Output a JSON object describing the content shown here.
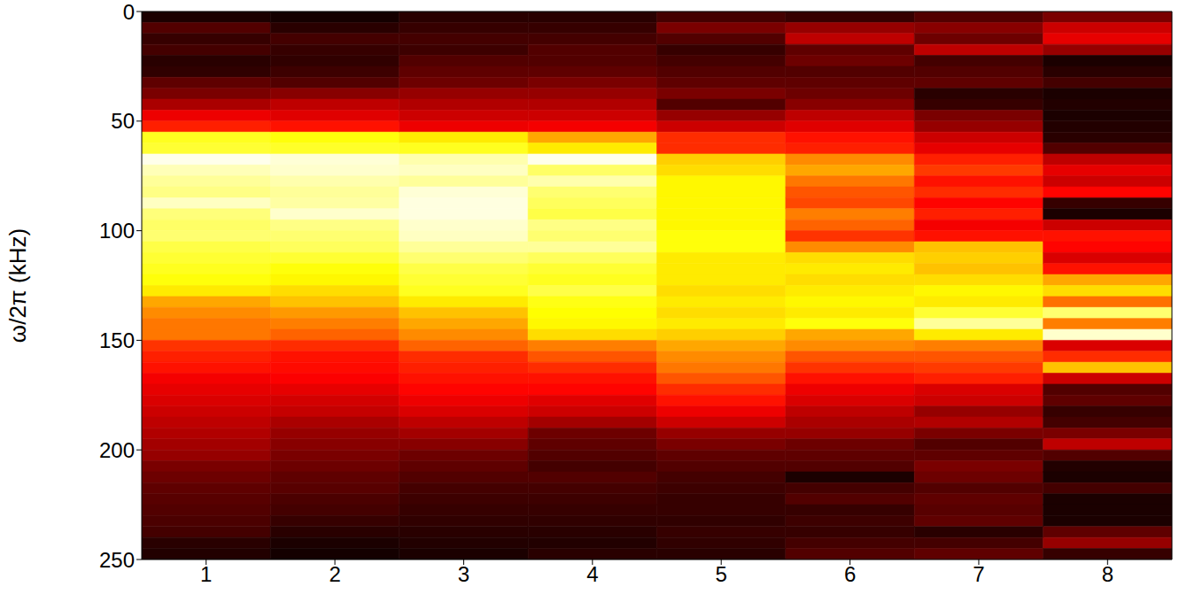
{
  "chart_data": {
    "type": "heatmap",
    "ylabel": "ω/2π (kHz)",
    "x": [
      1,
      2,
      3,
      4,
      5,
      6,
      7,
      8
    ],
    "xlim": [
      0.5,
      8.5
    ],
    "xticks": [
      1,
      2,
      3,
      4,
      5,
      6,
      7,
      8
    ],
    "ylim": [
      0,
      250
    ],
    "yticks": [
      0,
      50,
      100,
      150,
      200,
      250
    ],
    "y_bins": [
      0,
      5,
      10,
      15,
      20,
      25,
      30,
      35,
      40,
      45,
      50,
      55,
      60,
      65,
      70,
      75,
      80,
      85,
      90,
      95,
      100,
      105,
      110,
      115,
      120,
      125,
      130,
      135,
      140,
      145,
      150,
      155,
      160,
      165,
      170,
      175,
      180,
      185,
      190,
      195,
      200,
      205,
      210,
      215,
      220,
      225,
      230,
      235,
      240,
      245,
      250
    ],
    "color_range": [
      0,
      1
    ],
    "cells": [
      [
        0.04,
        0.12,
        0.08,
        0.1,
        0.06,
        0.07,
        0.14,
        0.18,
        0.25,
        0.35,
        0.42,
        0.78,
        0.8,
        0.98,
        0.93,
        0.9,
        0.88,
        0.94,
        0.87,
        0.85,
        0.86,
        0.82,
        0.8,
        0.78,
        0.76,
        0.72,
        0.62,
        0.58,
        0.55,
        0.55,
        0.45,
        0.42,
        0.4,
        0.36,
        0.34,
        0.32,
        0.3,
        0.28,
        0.26,
        0.24,
        0.22,
        0.18,
        0.16,
        0.14,
        0.13,
        0.12,
        0.11,
        0.1,
        0.06,
        0.05
      ],
      [
        0.03,
        0.06,
        0.1,
        0.08,
        0.07,
        0.09,
        0.12,
        0.2,
        0.28,
        0.33,
        0.4,
        0.76,
        0.79,
        0.96,
        0.95,
        0.92,
        0.9,
        0.91,
        0.95,
        0.88,
        0.86,
        0.84,
        0.8,
        0.76,
        0.74,
        0.7,
        0.66,
        0.6,
        0.56,
        0.52,
        0.44,
        0.4,
        0.39,
        0.37,
        0.34,
        0.31,
        0.29,
        0.25,
        0.22,
        0.2,
        0.18,
        0.16,
        0.14,
        0.13,
        0.11,
        0.1,
        0.08,
        0.06,
        0.04,
        0.03
      ],
      [
        0.06,
        0.08,
        0.1,
        0.09,
        0.12,
        0.14,
        0.16,
        0.22,
        0.26,
        0.3,
        0.35,
        0.72,
        0.78,
        0.92,
        0.94,
        0.9,
        0.96,
        0.97,
        0.97,
        0.95,
        0.94,
        0.9,
        0.86,
        0.82,
        0.8,
        0.78,
        0.72,
        0.66,
        0.62,
        0.58,
        0.52,
        0.44,
        0.42,
        0.4,
        0.38,
        0.35,
        0.32,
        0.28,
        0.24,
        0.2,
        0.16,
        0.14,
        0.12,
        0.1,
        0.09,
        0.08,
        0.07,
        0.06,
        0.05,
        0.04
      ],
      [
        0.06,
        0.08,
        0.1,
        0.12,
        0.12,
        0.14,
        0.18,
        0.22,
        0.26,
        0.3,
        0.36,
        0.62,
        0.72,
        0.98,
        0.85,
        0.92,
        0.86,
        0.84,
        0.82,
        0.88,
        0.86,
        0.9,
        0.84,
        0.8,
        0.78,
        0.82,
        0.77,
        0.75,
        0.74,
        0.7,
        0.56,
        0.5,
        0.44,
        0.4,
        0.38,
        0.33,
        0.3,
        0.24,
        0.16,
        0.14,
        0.12,
        0.1,
        0.12,
        0.1,
        0.09,
        0.08,
        0.07,
        0.06,
        0.05,
        0.06
      ],
      [
        0.1,
        0.18,
        0.12,
        0.08,
        0.1,
        0.12,
        0.14,
        0.18,
        0.12,
        0.22,
        0.3,
        0.44,
        0.44,
        0.68,
        0.7,
        0.74,
        0.74,
        0.74,
        0.74,
        0.74,
        0.76,
        0.76,
        0.72,
        0.72,
        0.72,
        0.7,
        0.72,
        0.7,
        0.72,
        0.68,
        0.62,
        0.58,
        0.55,
        0.5,
        0.44,
        0.4,
        0.35,
        0.3,
        0.22,
        0.18,
        0.14,
        0.12,
        0.1,
        0.09,
        0.08,
        0.08,
        0.07,
        0.08,
        0.07,
        0.06
      ],
      [
        0.08,
        0.22,
        0.28,
        0.14,
        0.16,
        0.12,
        0.14,
        0.16,
        0.2,
        0.28,
        0.33,
        0.4,
        0.42,
        0.58,
        0.62,
        0.55,
        0.5,
        0.48,
        0.56,
        0.52,
        0.45,
        0.58,
        0.7,
        0.72,
        0.7,
        0.72,
        0.74,
        0.72,
        0.76,
        0.62,
        0.58,
        0.5,
        0.45,
        0.4,
        0.35,
        0.32,
        0.28,
        0.25,
        0.22,
        0.16,
        0.14,
        0.12,
        0.04,
        0.1,
        0.12,
        0.08,
        0.09,
        0.08,
        0.1,
        0.12
      ],
      [
        0.12,
        0.2,
        0.16,
        0.28,
        0.1,
        0.12,
        0.14,
        0.06,
        0.08,
        0.18,
        0.22,
        0.3,
        0.34,
        0.42,
        0.46,
        0.4,
        0.44,
        0.38,
        0.42,
        0.36,
        0.4,
        0.66,
        0.68,
        0.66,
        0.7,
        0.74,
        0.72,
        0.8,
        0.9,
        0.72,
        0.56,
        0.5,
        0.46,
        0.42,
        0.32,
        0.3,
        0.22,
        0.26,
        0.18,
        0.12,
        0.14,
        0.18,
        0.16,
        0.12,
        0.14,
        0.13,
        0.14,
        0.06,
        0.1,
        0.14
      ],
      [
        0.18,
        0.3,
        0.34,
        0.22,
        0.04,
        0.06,
        0.1,
        0.04,
        0.05,
        0.04,
        0.05,
        0.06,
        0.12,
        0.28,
        0.34,
        0.3,
        0.38,
        0.08,
        0.04,
        0.3,
        0.4,
        0.38,
        0.32,
        0.4,
        0.62,
        0.7,
        0.54,
        0.86,
        0.56,
        0.95,
        0.32,
        0.44,
        0.66,
        0.3,
        0.12,
        0.14,
        0.08,
        0.1,
        0.18,
        0.28,
        0.12,
        0.05,
        0.04,
        0.1,
        0.04,
        0.04,
        0.04,
        0.14,
        0.22,
        0.08
      ]
    ]
  }
}
